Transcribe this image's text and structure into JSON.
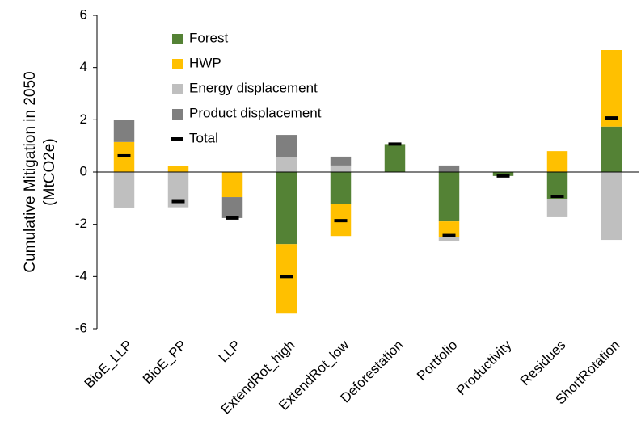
{
  "chart_data": {
    "type": "bar",
    "stacked": true,
    "ylabel": [
      "Cumulative Mitigation in 2050",
      "(MtCO2e)"
    ],
    "categories": [
      "BioE_LLP",
      "BioE_PP",
      "LLP",
      "ExtendRot_high",
      "ExtendRot_low",
      "Deforestation",
      "Portfolio",
      "Productivity",
      "Residues",
      "ShortRotation"
    ],
    "series": [
      {
        "name": "Forest",
        "color": "#548235",
        "values": [
          0,
          0,
          0,
          -2.76,
          -1.22,
          1.07,
          -1.89,
          -0.15,
          -1.02,
          1.74
        ]
      },
      {
        "name": "HWP",
        "color": "#ffc000",
        "values": [
          1.15,
          0.22,
          -0.96,
          -2.66,
          -1.23,
          0,
          -0.61,
          0,
          0.8,
          2.93
        ]
      },
      {
        "name": "Energy displacement",
        "color": "#bfbfbf",
        "values": [
          -1.36,
          -1.35,
          0,
          0.58,
          0.25,
          0,
          -0.16,
          0,
          -0.71,
          -2.6
        ]
      },
      {
        "name": "Product displacement",
        "color": "#7f7f7f",
        "values": [
          0.83,
          0,
          -0.8,
          0.84,
          0.34,
          0,
          0.25,
          0,
          0,
          0
        ]
      },
      {
        "name": "Total",
        "color": "#000000",
        "mark": "dash",
        "values": [
          0.62,
          -1.13,
          -1.76,
          -4.0,
          -1.86,
          1.07,
          -2.43,
          -0.15,
          -0.93,
          2.07
        ]
      }
    ],
    "ylim": [
      -6,
      6
    ],
    "yticks": [
      -6,
      -4,
      -2,
      0,
      2,
      4,
      6
    ],
    "grid": false
  }
}
